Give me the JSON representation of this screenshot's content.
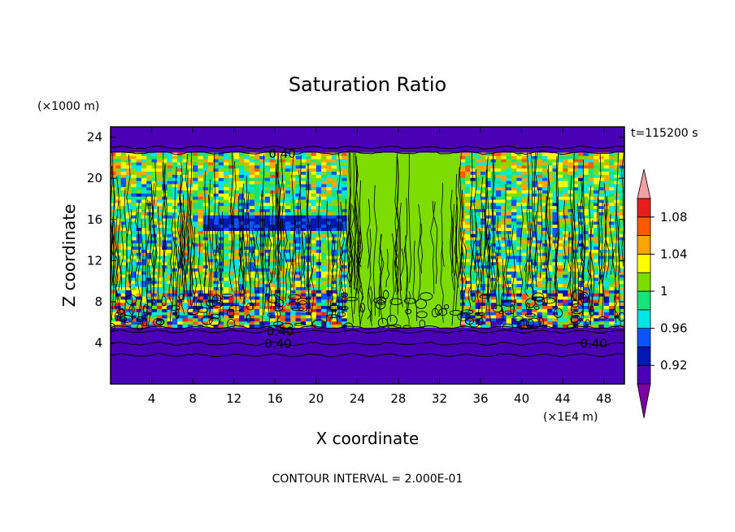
{
  "chart_data": {
    "type": "heatmap",
    "title": "Saturation Ratio",
    "xlabel": "X coordinate",
    "ylabel": "Z coordinate",
    "x_units": "(×1E4 m)",
    "y_units": "(×1000 m)",
    "time_label": "t=115200 s",
    "footer": "CONTOUR INTERVAL = 2.000E-01",
    "xlim": [
      0,
      50
    ],
    "ylim": [
      0,
      25
    ],
    "x_ticks": [
      {
        "value": 4,
        "label": "4"
      },
      {
        "value": 8,
        "label": "8"
      },
      {
        "value": 12,
        "label": "12"
      },
      {
        "value": 16,
        "label": "16"
      },
      {
        "value": 20,
        "label": "20"
      },
      {
        "value": 24,
        "label": "24"
      },
      {
        "value": 28,
        "label": "28"
      },
      {
        "value": 32,
        "label": "32"
      },
      {
        "value": 36,
        "label": "36"
      },
      {
        "value": 40,
        "label": "40"
      },
      {
        "value": 44,
        "label": "44"
      },
      {
        "value": 48,
        "label": "48"
      }
    ],
    "y_ticks": [
      {
        "value": 4,
        "label": "4"
      },
      {
        "value": 8,
        "label": "8"
      },
      {
        "value": 12,
        "label": "12"
      },
      {
        "value": 16,
        "label": "16"
      },
      {
        "value": 20,
        "label": "20"
      },
      {
        "value": 24,
        "label": "24"
      }
    ],
    "colorbar": {
      "levels": [
        0.9,
        0.92,
        0.94,
        0.96,
        0.98,
        1.0,
        1.02,
        1.04,
        1.06,
        1.08,
        1.1
      ],
      "colors": [
        "#7d00a5",
        "#4a00b4",
        "#0018b4",
        "#0a55ff",
        "#00e6e6",
        "#18e27a",
        "#7ddc00",
        "#ffff00",
        "#ffa500",
        "#ff5a00",
        "#e61e1e",
        "#f0a0a0"
      ],
      "tick_labels": [
        {
          "value": 0.92,
          "label": "0.92"
        },
        {
          "value": 0.96,
          "label": "0.96"
        },
        {
          "value": 1.0,
          "label": "1"
        },
        {
          "value": 1.04,
          "label": "1.04"
        },
        {
          "value": 1.08,
          "label": "1.08"
        }
      ]
    },
    "contour_labels": [
      {
        "x": 16.7,
        "z": 22.4,
        "label": "0.40"
      },
      {
        "x": 16.5,
        "z": 5.1,
        "label": "0.40"
      },
      {
        "x": 16.3,
        "z": 3.9,
        "label": "0.40"
      },
      {
        "x": 47.0,
        "z": 3.9,
        "label": "0.40"
      }
    ],
    "regions": [
      {
        "z_range": [
          0,
          5.5
        ],
        "value": 0.9,
        "description": "dry layer, uniform purple"
      },
      {
        "z_range": [
          5.5,
          22.5
        ],
        "value": 1.0,
        "description": "near-saturated mixed layer"
      },
      {
        "z_range": [
          22.5,
          25
        ],
        "value": 0.9,
        "description": "dry layer, uniform purple"
      }
    ]
  }
}
